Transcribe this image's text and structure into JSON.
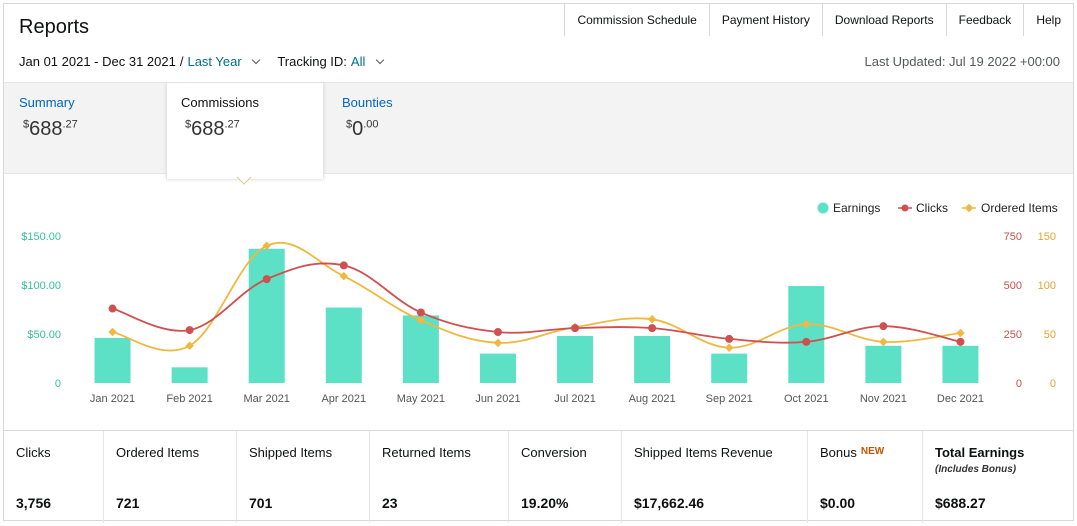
{
  "header": {
    "title": "Reports",
    "nav": [
      "Commission Schedule",
      "Payment History",
      "Download Reports",
      "Feedback",
      "Help"
    ]
  },
  "filters": {
    "date_range": "Jan 01 2021 - Dec 31 2021",
    "separator": "/",
    "period": "Last Year",
    "tracking_label": "Tracking ID:",
    "tracking_value": "All"
  },
  "last_updated": "Last Updated: Jul 19 2022 +00:00",
  "tabs": [
    {
      "label": "Summary",
      "amount_main": "688",
      "amount_cents": ".27",
      "currency": "$"
    },
    {
      "label": "Commissions",
      "amount_main": "688",
      "amount_cents": ".27",
      "currency": "$"
    },
    {
      "label": "Bounties",
      "amount_main": "0",
      "amount_cents": ".00",
      "currency": "$"
    }
  ],
  "chart_data": {
    "type": "bar",
    "categories": [
      "Jan 2021",
      "Feb 2021",
      "Mar 2021",
      "Apr 2021",
      "May 2021",
      "Jun 2021",
      "Jul 2021",
      "Aug 2021",
      "Sep 2021",
      "Oct 2021",
      "Nov 2021",
      "Dec 2021"
    ],
    "series": [
      {
        "name": "Earnings",
        "type": "bar",
        "axis": "left",
        "color": "#5ce1c6",
        "values": [
          46,
          16,
          137,
          77,
          69,
          30,
          48,
          48,
          30,
          99,
          38,
          38
        ]
      },
      {
        "name": "Clicks",
        "type": "line",
        "axis": "right1",
        "color": "#d04f4f",
        "values": [
          380,
          270,
          530,
          600,
          360,
          260,
          280,
          280,
          225,
          210,
          290,
          210
        ]
      },
      {
        "name": "Ordered Items",
        "type": "line",
        "axis": "right2",
        "color": "#f0b840",
        "values": [
          52,
          38,
          140,
          109,
          64,
          41,
          57,
          65,
          36,
          60,
          42,
          51
        ]
      }
    ],
    "left_axis": {
      "ticks": [
        "0",
        "$50.00",
        "$100.00",
        "$150.00"
      ],
      "range": [
        0,
        150
      ],
      "color": "#36c0a0"
    },
    "right1_axis": {
      "ticks": [
        "0",
        "250",
        "500",
        "750"
      ],
      "range": [
        0,
        750
      ],
      "color": "#c8504a"
    },
    "right2_axis": {
      "ticks": [
        "0",
        "50",
        "100",
        "150"
      ],
      "range": [
        0,
        150
      ],
      "color": "#e0a530"
    },
    "legend": [
      "Earnings",
      "Clicks",
      "Ordered Items"
    ],
    "legend_position": "top-right",
    "grid": false
  },
  "stats": [
    {
      "label": "Clicks",
      "value": "3,756"
    },
    {
      "label": "Ordered Items",
      "value": "721"
    },
    {
      "label": "Shipped Items",
      "value": "701"
    },
    {
      "label": "Returned Items",
      "value": "23"
    },
    {
      "label": "Conversion",
      "value": "19.20%"
    },
    {
      "label": "Shipped Items Revenue",
      "value": "$17,662.46"
    },
    {
      "label": "Bonus",
      "badge": "NEW",
      "value": "$0.00"
    },
    {
      "label": "Total Earnings",
      "sub": "(Includes Bonus)",
      "value": "$688.27"
    }
  ]
}
